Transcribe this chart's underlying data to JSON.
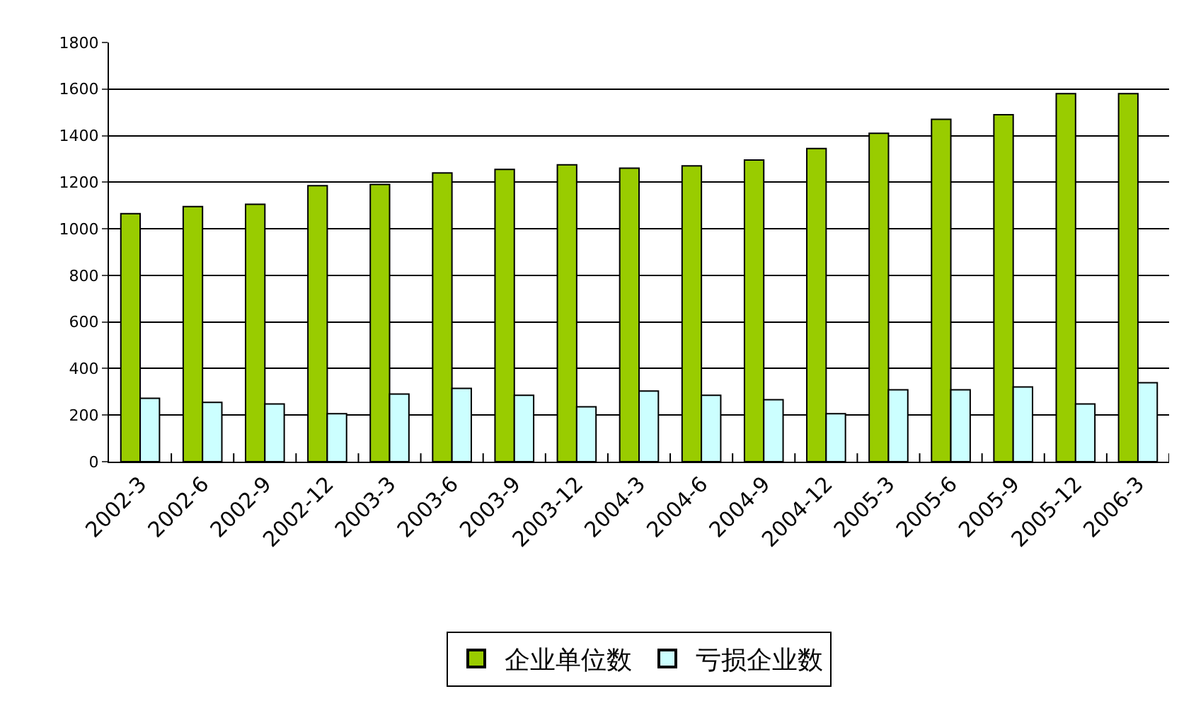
{
  "chart_data": {
    "type": "bar",
    "categories": [
      "2002-3",
      "2002-6",
      "2002-9",
      "2002-12",
      "2003-3",
      "2003-6",
      "2003-9",
      "2003-12",
      "2004-3",
      "2004-6",
      "2004-9",
      "2004-12",
      "2005-3",
      "2005-6",
      "2005-9",
      "2005-12",
      "2006-3"
    ],
    "series": [
      {
        "name": "企业单位数",
        "color": "#99cc00",
        "values": [
          1065,
          1095,
          1105,
          1185,
          1190,
          1240,
          1255,
          1275,
          1260,
          1270,
          1295,
          1345,
          1410,
          1470,
          1490,
          1580,
          1580
        ]
      },
      {
        "name": "亏损企业数",
        "color": "#ccffff",
        "values": [
          272,
          255,
          248,
          206,
          290,
          315,
          285,
          236,
          303,
          285,
          266,
          206,
          309,
          309,
          321,
          248,
          339
        ]
      }
    ],
    "ylim": [
      0,
      1800
    ],
    "yticks": [
      0,
      200,
      400,
      600,
      800,
      1000,
      1200,
      1400,
      1600,
      1800
    ],
    "grid": "y",
    "legend": "bottom"
  }
}
